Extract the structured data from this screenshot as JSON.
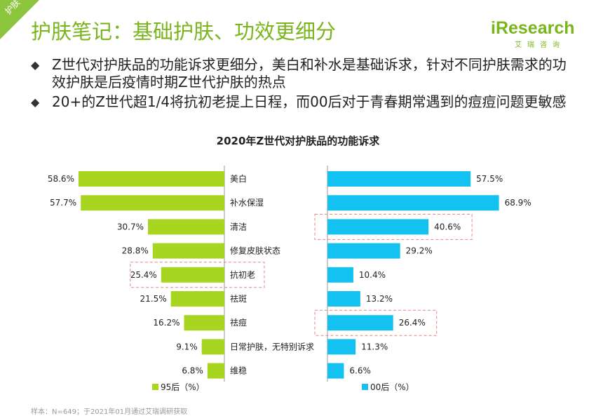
{
  "header": {
    "corner_tag": "护肤",
    "title": "护肤笔记：基础护肤、功效更细分",
    "logo_main": "iResearch",
    "logo_sub": "艾瑞咨询"
  },
  "bullets": [
    "Z世代对护肤品的功能诉求更细分，美白和补水是基础诉求，针对不同护肤需求的功效护肤是后疫情时期Z世代护肤的热点",
    "20+的Z世代超1/4将抗初老提上日程，而00后对于青春期常遇到的痘痘问题更敏感"
  ],
  "chart_data": {
    "type": "bar",
    "title": "2020年Z世代对护肤品的功能诉求",
    "categories": [
      "美白",
      "补水保湿",
      "清洁",
      "修复皮肤状态",
      "抗初老",
      "祛斑",
      "祛痘",
      "日常护肤，无特别诉求",
      "维稳"
    ],
    "series": [
      {
        "name": "95后（%）",
        "values": [
          58.6,
          57.7,
          30.7,
          28.8,
          25.4,
          21.5,
          16.2,
          9.1,
          6.8
        ],
        "color": "#a8d520"
      },
      {
        "name": "00后（%）",
        "values": [
          57.5,
          68.9,
          40.6,
          29.2,
          10.4,
          13.2,
          26.4,
          11.3,
          6.6
        ],
        "color": "#13c2f0"
      }
    ],
    "value_format": "{v}%",
    "highlights": [
      {
        "series": 0,
        "category": "抗初老"
      },
      {
        "series": 1,
        "category": "清洁"
      },
      {
        "series": 1,
        "category": "祛痘"
      }
    ],
    "highlight_color": "#e88080"
  },
  "source_note": "样本：N=649；于2021年01月通过艾瑞调研获取"
}
